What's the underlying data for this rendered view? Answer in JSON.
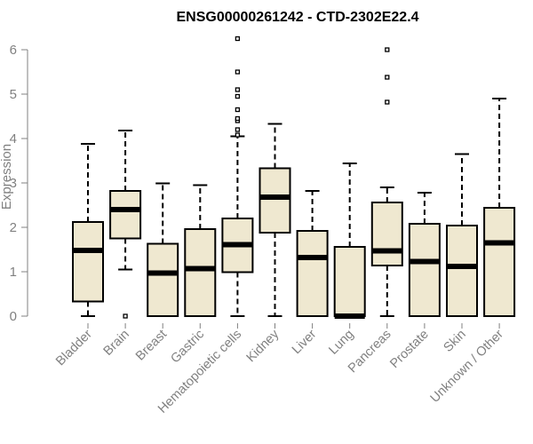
{
  "chart_data": {
    "type": "boxplot",
    "title": "ENSG00000261242 - CTD-2302E22.4",
    "xlabel": "",
    "ylabel": "Expression",
    "ylim": [
      0,
      6.3
    ],
    "yticks": [
      0,
      1,
      2,
      3,
      4,
      5,
      6
    ],
    "ytick_labels": [
      "0",
      "1",
      "2",
      "3",
      "4",
      "5",
      "6"
    ],
    "grid": false,
    "legend": "none",
    "box_fill": "#efe8d0",
    "box_stroke": "#000000",
    "categories": [
      "Bladder",
      "Brain",
      "Breast",
      "Gastric",
      "Hematopoietic cells",
      "Kidney",
      "Liver",
      "Lung",
      "Pancreas",
      "Prostate",
      "Skin",
      "Unknown / Other"
    ],
    "boxes": [
      {
        "category": "Bladder",
        "whisker_low": 0.0,
        "q1": 0.33,
        "median": 1.48,
        "q3": 2.12,
        "whisker_high": 3.88,
        "outliers": []
      },
      {
        "category": "Brain",
        "whisker_low": 1.05,
        "q1": 1.75,
        "median": 2.4,
        "q3": 2.82,
        "whisker_high": 4.18,
        "outliers": [
          0.0
        ]
      },
      {
        "category": "Breast",
        "whisker_low": 0.0,
        "q1": 0.0,
        "median": 0.97,
        "q3": 1.63,
        "whisker_high": 2.99,
        "outliers": []
      },
      {
        "category": "Gastric",
        "whisker_low": 0.0,
        "q1": 0.0,
        "median": 1.07,
        "q3": 1.96,
        "whisker_high": 2.95,
        "outliers": []
      },
      {
        "category": "Hematopoietic cells",
        "whisker_low": 0.0,
        "q1": 0.99,
        "median": 1.61,
        "q3": 2.2,
        "whisker_high": 4.05,
        "outliers": [
          4.08,
          4.2,
          4.4,
          4.45,
          4.65,
          4.95,
          5.1,
          5.5,
          6.25
        ]
      },
      {
        "category": "Kidney",
        "whisker_low": 0.0,
        "q1": 1.88,
        "median": 2.68,
        "q3": 3.33,
        "whisker_high": 4.33,
        "outliers": []
      },
      {
        "category": "Liver",
        "whisker_low": 0.0,
        "q1": 0.0,
        "median": 1.32,
        "q3": 1.92,
        "whisker_high": 2.82,
        "outliers": []
      },
      {
        "category": "Lung",
        "whisker_low": 0.0,
        "q1": 0.0,
        "median": 0.0,
        "q3": 1.56,
        "whisker_high": 3.44,
        "outliers": []
      },
      {
        "category": "Pancreas",
        "whisker_low": 0.0,
        "q1": 1.14,
        "median": 1.47,
        "q3": 2.56,
        "whisker_high": 2.9,
        "outliers": [
          4.82,
          5.38,
          6.0
        ]
      },
      {
        "category": "Prostate",
        "whisker_low": 0.0,
        "q1": 0.0,
        "median": 1.23,
        "q3": 2.08,
        "whisker_high": 2.78,
        "outliers": []
      },
      {
        "category": "Skin",
        "whisker_low": 0.0,
        "q1": 0.0,
        "median": 1.12,
        "q3": 2.04,
        "whisker_high": 3.65,
        "outliers": []
      },
      {
        "category": "Unknown / Other",
        "whisker_low": 0.0,
        "q1": 0.0,
        "median": 1.65,
        "q3": 2.44,
        "whisker_high": 4.9,
        "outliers": []
      }
    ]
  }
}
